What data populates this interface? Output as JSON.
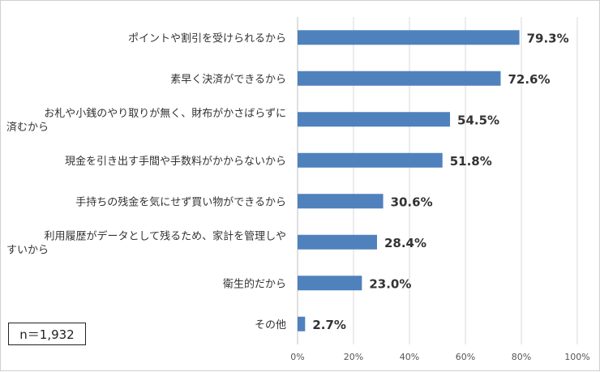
{
  "chart_data": {
    "type": "bar",
    "orientation": "horizontal",
    "categories": [
      [
        "ポイントや割引を受けられるから"
      ],
      [
        "素早く決済ができるから"
      ],
      [
        "お札や小銭のやり取りが無く、財布がかさばらずに",
        "済むから"
      ],
      [
        "現金を引き出す手間や手数料がかからないから"
      ],
      [
        "手持ちの残金を気にせず買い物ができるから"
      ],
      [
        "利用履歴がデータとして残るため、家計を管理しや",
        "すいから"
      ],
      [
        "衛生的だから"
      ],
      [
        "その他"
      ]
    ],
    "values": [
      79.3,
      72.6,
      54.5,
      51.8,
      30.6,
      28.4,
      23.0,
      2.7
    ],
    "value_labels": [
      "79.3%",
      "72.6%",
      "54.5%",
      "51.8%",
      "30.6%",
      "28.4%",
      "23.0%",
      "2.7%"
    ],
    "xticks": [
      "0%",
      "20%",
      "40%",
      "60%",
      "80%",
      "100%"
    ],
    "xlim": [
      0,
      100
    ],
    "grid": true,
    "bar_color": "#4f81bd"
  },
  "note": {
    "sample_size": "n＝1,932"
  }
}
